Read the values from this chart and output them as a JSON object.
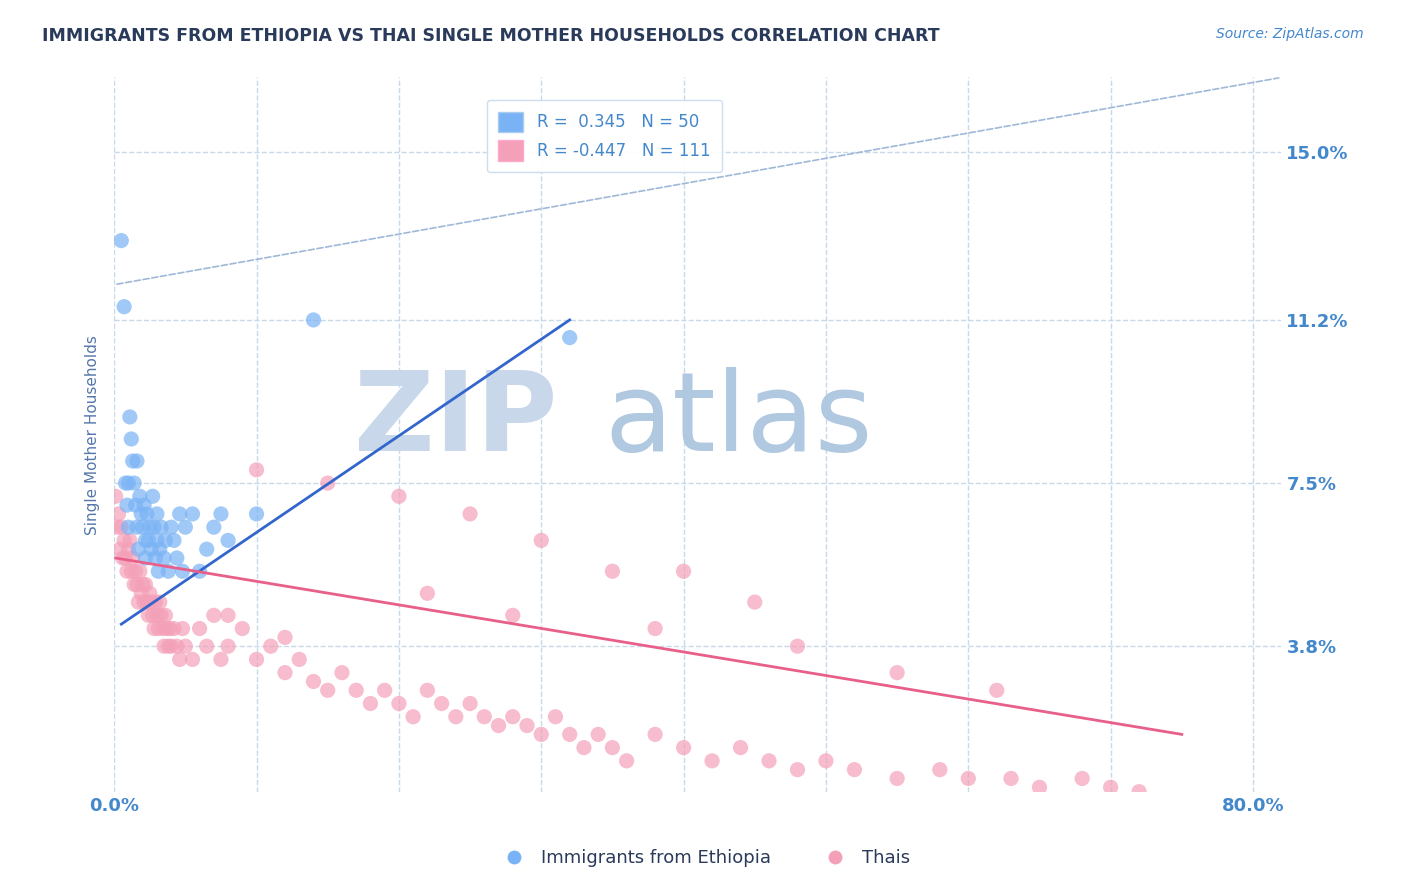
{
  "title": "IMMIGRANTS FROM ETHIOPIA VS THAI SINGLE MOTHER HOUSEHOLDS CORRELATION CHART",
  "source": "Source: ZipAtlas.com",
  "ylabel": "Single Mother Households",
  "y_ticks": [
    0.038,
    0.075,
    0.112,
    0.15
  ],
  "y_tick_labels": [
    "3.8%",
    "7.5%",
    "11.2%",
    "15.0%"
  ],
  "x_ticks": [
    0.0,
    0.1,
    0.2,
    0.3,
    0.4,
    0.5,
    0.6,
    0.7,
    0.8
  ],
  "x_tick_labels": [
    "0.0%",
    "",
    "",
    "",
    "",
    "",
    "",
    "",
    "80.0%"
  ],
  "xlim": [
    0.0,
    0.82
  ],
  "ylim": [
    0.005,
    0.167
  ],
  "blue_color": "#7ab3f5",
  "pink_color": "#f4a0b8",
  "trendline_blue": "#3366cc",
  "trendline_pink": "#e8608a",
  "reference_line_color": "#a0b8d8",
  "background_color": "#ffffff",
  "grid_color": "#c8daea",
  "watermark_zip_color": "#c8d8ea",
  "watermark_atlas_color": "#b0c8e0",
  "title_color": "#2a3a5a",
  "axis_label_color": "#5577aa",
  "tick_label_color": "#4488cc",
  "legend_color": "#4488cc",
  "blue_scatter_x": [
    0.005,
    0.007,
    0.008,
    0.009,
    0.01,
    0.01,
    0.011,
    0.012,
    0.013,
    0.014,
    0.015,
    0.016,
    0.016,
    0.017,
    0.018,
    0.019,
    0.02,
    0.021,
    0.022,
    0.022,
    0.023,
    0.024,
    0.025,
    0.026,
    0.027,
    0.028,
    0.029,
    0.03,
    0.03,
    0.031,
    0.032,
    0.033,
    0.035,
    0.036,
    0.038,
    0.04,
    0.042,
    0.044,
    0.046,
    0.048,
    0.05,
    0.055,
    0.06,
    0.065,
    0.07,
    0.075,
    0.08,
    0.1,
    0.14,
    0.32
  ],
  "blue_scatter_y": [
    0.13,
    0.115,
    0.075,
    0.07,
    0.075,
    0.065,
    0.09,
    0.085,
    0.08,
    0.075,
    0.07,
    0.065,
    0.08,
    0.06,
    0.072,
    0.068,
    0.065,
    0.07,
    0.062,
    0.058,
    0.068,
    0.062,
    0.065,
    0.06,
    0.072,
    0.065,
    0.058,
    0.062,
    0.068,
    0.055,
    0.06,
    0.065,
    0.058,
    0.062,
    0.055,
    0.065,
    0.062,
    0.058,
    0.068,
    0.055,
    0.065,
    0.068,
    0.055,
    0.06,
    0.065,
    0.068,
    0.062,
    0.068,
    0.112,
    0.108
  ],
  "pink_scatter_x": [
    0.001,
    0.002,
    0.003,
    0.004,
    0.005,
    0.006,
    0.007,
    0.008,
    0.009,
    0.01,
    0.011,
    0.012,
    0.013,
    0.014,
    0.015,
    0.016,
    0.017,
    0.018,
    0.019,
    0.02,
    0.021,
    0.022,
    0.023,
    0.024,
    0.025,
    0.026,
    0.027,
    0.028,
    0.029,
    0.03,
    0.031,
    0.032,
    0.033,
    0.034,
    0.035,
    0.036,
    0.037,
    0.038,
    0.039,
    0.04,
    0.042,
    0.044,
    0.046,
    0.048,
    0.05,
    0.055,
    0.06,
    0.065,
    0.07,
    0.075,
    0.08,
    0.09,
    0.1,
    0.11,
    0.12,
    0.13,
    0.14,
    0.15,
    0.16,
    0.17,
    0.18,
    0.19,
    0.2,
    0.21,
    0.22,
    0.23,
    0.24,
    0.25,
    0.26,
    0.27,
    0.28,
    0.29,
    0.3,
    0.31,
    0.32,
    0.33,
    0.34,
    0.35,
    0.36,
    0.38,
    0.4,
    0.42,
    0.44,
    0.46,
    0.48,
    0.5,
    0.52,
    0.55,
    0.58,
    0.6,
    0.63,
    0.65,
    0.68,
    0.7,
    0.72,
    0.35,
    0.25,
    0.45,
    0.3,
    0.2,
    0.15,
    0.1,
    0.28,
    0.38,
    0.48,
    0.55,
    0.62,
    0.4,
    0.08,
    0.12,
    0.22
  ],
  "pink_scatter_y": [
    0.072,
    0.065,
    0.068,
    0.06,
    0.065,
    0.058,
    0.062,
    0.058,
    0.055,
    0.06,
    0.062,
    0.055,
    0.058,
    0.052,
    0.055,
    0.052,
    0.048,
    0.055,
    0.05,
    0.052,
    0.048,
    0.052,
    0.048,
    0.045,
    0.05,
    0.048,
    0.045,
    0.042,
    0.048,
    0.045,
    0.042,
    0.048,
    0.045,
    0.042,
    0.038,
    0.045,
    0.042,
    0.038,
    0.042,
    0.038,
    0.042,
    0.038,
    0.035,
    0.042,
    0.038,
    0.035,
    0.042,
    0.038,
    0.045,
    0.035,
    0.038,
    0.042,
    0.035,
    0.038,
    0.032,
    0.035,
    0.03,
    0.028,
    0.032,
    0.028,
    0.025,
    0.028,
    0.025,
    0.022,
    0.028,
    0.025,
    0.022,
    0.025,
    0.022,
    0.02,
    0.022,
    0.02,
    0.018,
    0.022,
    0.018,
    0.015,
    0.018,
    0.015,
    0.012,
    0.018,
    0.015,
    0.012,
    0.015,
    0.012,
    0.01,
    0.012,
    0.01,
    0.008,
    0.01,
    0.008,
    0.008,
    0.006,
    0.008,
    0.006,
    0.005,
    0.055,
    0.068,
    0.048,
    0.062,
    0.072,
    0.075,
    0.078,
    0.045,
    0.042,
    0.038,
    0.032,
    0.028,
    0.055,
    0.045,
    0.04,
    0.05
  ],
  "blue_trend_x0": 0.005,
  "blue_trend_x1": 0.32,
  "blue_trend_y0": 0.043,
  "blue_trend_y1": 0.112,
  "pink_trend_x0": 0.001,
  "pink_trend_x1": 0.75,
  "pink_trend_y0": 0.058,
  "pink_trend_y1": 0.018,
  "ref_line_x0": 0.0,
  "ref_line_x1": 0.82,
  "ref_line_y0": 0.12,
  "ref_line_y1": 0.167
}
